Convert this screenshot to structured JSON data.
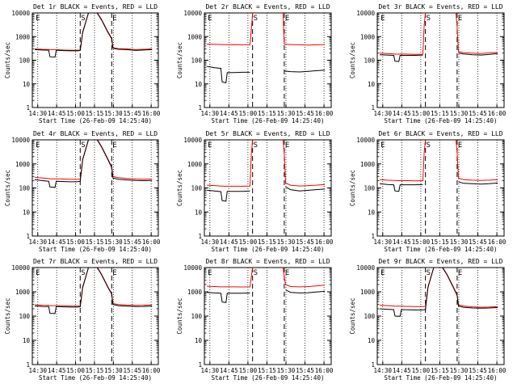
{
  "figure": {
    "ylabel": "Counts/sec",
    "xlabel": "Start Time (26-Feb-09 14:25:40)",
    "time_ticks": [
      "14:30",
      "14:45",
      "15:00",
      "15:15",
      "15:30",
      "15:45",
      "16:00"
    ],
    "y_ticks": [
      "1",
      "10",
      "100",
      "1000",
      "10000"
    ],
    "marker_labels": [
      "E",
      "S",
      "E"
    ],
    "colors": {
      "events": "#000000",
      "lld": "#ff0000",
      "axes": "#000000"
    }
  },
  "chart_data": [
    {
      "type": "line",
      "title": "Det 1r BLACK = Events, RED = LLD",
      "xlabel": "Start Time (26-Feb-09 14:25:40)",
      "ylabel": "Counts/sec",
      "ylim": [
        1,
        10000
      ],
      "yscale": "log",
      "x_unit": "minutes after 14:25:40",
      "markers_x": [
        2,
        38,
        63
      ],
      "marker_labels": [
        "E",
        "S",
        "E"
      ],
      "series": [
        {
          "name": "Events",
          "color": "#000000",
          "x": [
            2,
            8,
            13,
            14,
            18,
            19,
            25,
            30,
            35,
            36,
            38,
            40,
            45,
            50,
            52,
            55,
            60,
            63,
            64,
            68,
            75,
            82,
            88,
            95
          ],
          "values": [
            280,
            270,
            265,
            140,
            135,
            265,
            255,
            250,
            250,
            250,
            255,
            1500,
            12000,
            12000,
            9000,
            5000,
            1500,
            800,
            320,
            290,
            280,
            260,
            270,
            280
          ]
        },
        {
          "name": "LLD",
          "color": "#ff0000",
          "x": [
            2,
            8,
            13,
            14,
            18,
            19,
            25,
            30,
            35,
            36,
            38,
            40,
            45,
            50,
            52,
            55,
            60,
            63,
            64,
            68,
            75,
            82,
            88,
            95
          ],
          "values": [
            300,
            290,
            285,
            280,
            280,
            280,
            270,
            265,
            265,
            265,
            270,
            1600,
            12000,
            12000,
            9500,
            5200,
            1600,
            850,
            340,
            310,
            300,
            280,
            290,
            300
          ]
        }
      ]
    },
    {
      "type": "line",
      "title": "Det 2r BLACK = Events, RED = LLD",
      "xlabel": "Start Time (26-Feb-09 14:25:40)",
      "ylabel": "Counts/sec",
      "ylim": [
        1,
        10000
      ],
      "yscale": "log",
      "x_unit": "minutes after 14:25:40",
      "markers_x": [
        2,
        38,
        63
      ],
      "marker_labels": [
        "E",
        "S",
        "E"
      ],
      "series": [
        {
          "name": "Events",
          "color": "#000000",
          "x": [
            2,
            8,
            13,
            14,
            17,
            18,
            24,
            30,
            36,
            38,
            42,
            50,
            56,
            62,
            63,
            68,
            75,
            82,
            88,
            95
          ],
          "values": [
            55,
            48,
            45,
            12,
            11,
            30,
            30,
            31,
            31,
            null,
            null,
            null,
            null,
            null,
            35,
            33,
            32,
            34,
            36,
            38
          ]
        },
        {
          "name": "LLD",
          "color": "#ff0000",
          "x": [
            2,
            8,
            13,
            17,
            24,
            30,
            36,
            37,
            38,
            40,
            45,
            50,
            55,
            60,
            62,
            63,
            68,
            75,
            82,
            88,
            95
          ],
          "values": [
            480,
            470,
            460,
            455,
            460,
            455,
            450,
            2000,
            10000,
            11000,
            11000,
            11000,
            11000,
            11000,
            10000,
            470,
            460,
            450,
            440,
            450,
            460
          ]
        }
      ]
    },
    {
      "type": "line",
      "title": "Det 3r BLACK = Events, RED = LLD",
      "xlabel": "Start Time (26-Feb-09 14:25:40)",
      "ylabel": "Counts/sec",
      "ylim": [
        1,
        10000
      ],
      "yscale": "log",
      "x_unit": "minutes after 14:25:40",
      "markers_x": [
        2,
        38,
        63
      ],
      "marker_labels": [
        "E",
        "S",
        "E"
      ],
      "series": [
        {
          "name": "Events",
          "color": "#000000",
          "x": [
            2,
            8,
            13,
            14,
            17,
            18,
            24,
            30,
            36,
            37,
            63,
            64,
            68,
            75,
            82,
            88,
            95
          ],
          "values": [
            170,
            165,
            160,
            90,
            88,
            160,
            160,
            160,
            165,
            null,
            null,
            200,
            185,
            170,
            165,
            175,
            190
          ]
        },
        {
          "name": "LLD",
          "color": "#ff0000",
          "x": [
            2,
            8,
            13,
            14,
            17,
            18,
            24,
            30,
            36,
            37,
            38,
            62,
            63,
            64,
            68,
            75,
            82,
            88,
            95
          ],
          "values": [
            200,
            190,
            185,
            180,
            180,
            185,
            180,
            178,
            180,
            3000,
            11000,
            11000,
            2500,
            230,
            210,
            200,
            190,
            205,
            215
          ]
        }
      ]
    },
    {
      "type": "line",
      "title": "Det 4r BLACK = Events, RED = LLD",
      "xlabel": "Start Time (26-Feb-09 14:25:40)",
      "ylabel": "Counts/sec",
      "ylim": [
        1,
        10000
      ],
      "yscale": "log",
      "x_unit": "minutes after 14:25:40",
      "markers_x": [
        2,
        38,
        63
      ],
      "marker_labels": [
        "E",
        "S",
        "E"
      ],
      "series": [
        {
          "name": "Events",
          "color": "#000000",
          "x": [
            2,
            8,
            13,
            14,
            18,
            19,
            25,
            30,
            35,
            36,
            38,
            40,
            45,
            50,
            52,
            55,
            60,
            63,
            64,
            68,
            75,
            82,
            88,
            95
          ],
          "values": [
            220,
            200,
            190,
            110,
            105,
            190,
            185,
            180,
            180,
            182,
            190,
            1500,
            12000,
            12000,
            9000,
            5000,
            1500,
            700,
            260,
            230,
            215,
            205,
            200,
            205
          ]
        },
        {
          "name": "LLD",
          "color": "#ff0000",
          "x": [
            2,
            8,
            13,
            14,
            18,
            19,
            25,
            30,
            35,
            36,
            38,
            40,
            45,
            50,
            52,
            55,
            60,
            63,
            64,
            68,
            75,
            82,
            88,
            95
          ],
          "values": [
            280,
            260,
            245,
            240,
            240,
            240,
            235,
            230,
            228,
            228,
            235,
            1600,
            12000,
            12000,
            9500,
            5200,
            1600,
            750,
            300,
            270,
            250,
            235,
            230,
            235
          ]
        }
      ]
    },
    {
      "type": "line",
      "title": "Det 5r BLACK = Events, RED = LLD",
      "xlabel": "Start Time (26-Feb-09 14:25:40)",
      "ylabel": "Counts/sec",
      "ylim": [
        1,
        10000
      ],
      "yscale": "log",
      "x_unit": "minutes after 14:25:40",
      "markers_x": [
        2,
        38,
        63
      ],
      "marker_labels": [
        "E",
        "S",
        "E"
      ],
      "series": [
        {
          "name": "Events",
          "color": "#000000",
          "x": [
            2,
            8,
            13,
            14,
            17,
            18,
            24,
            30,
            36,
            37,
            63,
            64,
            68,
            75,
            82,
            88,
            95
          ],
          "values": [
            80,
            75,
            70,
            30,
            28,
            72,
            72,
            72,
            75,
            null,
            null,
            110,
            85,
            75,
            80,
            85,
            90
          ]
        },
        {
          "name": "LLD",
          "color": "#ff0000",
          "x": [
            2,
            8,
            13,
            17,
            24,
            30,
            36,
            37,
            38,
            62,
            63,
            64,
            68,
            75,
            82,
            88,
            95
          ],
          "values": [
            130,
            125,
            120,
            118,
            118,
            118,
            120,
            2500,
            11000,
            11000,
            2500,
            160,
            130,
            120,
            125,
            130,
            140
          ]
        }
      ]
    },
    {
      "type": "line",
      "title": "Det 6r BLACK = Events, RED = LLD",
      "xlabel": "Start Time (26-Feb-09 14:25:40)",
      "ylabel": "Counts/sec",
      "ylim": [
        1,
        10000
      ],
      "yscale": "log",
      "x_unit": "minutes after 14:25:40",
      "markers_x": [
        2,
        38,
        63
      ],
      "marker_labels": [
        "E",
        "S",
        "E"
      ],
      "series": [
        {
          "name": "Events",
          "color": "#000000",
          "x": [
            2,
            8,
            13,
            14,
            17,
            18,
            24,
            30,
            36,
            37,
            63,
            64,
            68,
            75,
            82,
            88,
            95
          ],
          "values": [
            150,
            140,
            135,
            75,
            72,
            135,
            135,
            135,
            138,
            null,
            null,
            180,
            155,
            150,
            145,
            150,
            160
          ]
        },
        {
          "name": "LLD",
          "color": "#ff0000",
          "x": [
            2,
            8,
            13,
            17,
            24,
            30,
            36,
            37,
            38,
            62,
            63,
            64,
            68,
            75,
            82,
            88,
            95
          ],
          "values": [
            220,
            210,
            205,
            200,
            200,
            198,
            200,
            3000,
            11000,
            11000,
            3000,
            260,
            220,
            210,
            205,
            210,
            220
          ]
        }
      ]
    },
    {
      "type": "line",
      "title": "Det 7r BLACK = Events, RED = LLD",
      "xlabel": "Start Time (26-Feb-09 14:25:40)",
      "ylabel": "Counts/sec",
      "ylim": [
        1,
        10000
      ],
      "yscale": "log",
      "x_unit": "minutes after 14:25:40",
      "markers_x": [
        2,
        38,
        63
      ],
      "marker_labels": [
        "E",
        "S",
        "E"
      ],
      "series": [
        {
          "name": "Events",
          "color": "#000000",
          "x": [
            2,
            8,
            13,
            14,
            18,
            19,
            25,
            30,
            35,
            36,
            38,
            40,
            45,
            50,
            52,
            55,
            60,
            63,
            64,
            68,
            75,
            82,
            88,
            95
          ],
          "values": [
            260,
            250,
            245,
            130,
            128,
            245,
            240,
            235,
            235,
            235,
            240,
            1500,
            12000,
            12000,
            9000,
            5000,
            1500,
            800,
            300,
            270,
            255,
            245,
            250,
            260
          ]
        },
        {
          "name": "LLD",
          "color": "#ff0000",
          "x": [
            2,
            8,
            13,
            14,
            18,
            19,
            25,
            30,
            35,
            36,
            38,
            40,
            45,
            50,
            52,
            55,
            60,
            63,
            64,
            68,
            75,
            82,
            88,
            95
          ],
          "values": [
            290,
            280,
            275,
            270,
            270,
            270,
            265,
            260,
            260,
            260,
            265,
            1600,
            12000,
            12000,
            9500,
            5200,
            1600,
            850,
            330,
            300,
            285,
            275,
            280,
            290
          ]
        }
      ]
    },
    {
      "type": "line",
      "title": "Det 8r BLACK = Events, RED = LLD",
      "xlabel": "Start Time (26-Feb-09 14:25:40)",
      "ylabel": "Counts/sec",
      "ylim": [
        1,
        10000
      ],
      "yscale": "log",
      "x_unit": "minutes after 14:25:40",
      "markers_x": [
        2,
        38,
        63
      ],
      "marker_labels": [
        "E",
        "S",
        "E"
      ],
      "series": [
        {
          "name": "Events",
          "color": "#000000",
          "x": [
            2,
            8,
            13,
            14,
            17,
            18,
            24,
            30,
            36,
            37,
            63,
            64,
            68,
            75,
            82,
            88,
            95
          ],
          "values": [
            950,
            900,
            880,
            380,
            360,
            880,
            880,
            880,
            890,
            null,
            null,
            1200,
            950,
            900,
            920,
            980,
            1050
          ]
        },
        {
          "name": "LLD",
          "color": "#ff0000",
          "x": [
            2,
            8,
            13,
            17,
            24,
            30,
            36,
            37,
            38,
            62,
            63,
            64,
            68,
            75,
            82,
            88,
            95
          ],
          "values": [
            1700,
            1650,
            1600,
            1600,
            1600,
            1580,
            1600,
            4000,
            11000,
            11000,
            4000,
            2000,
            1650,
            1600,
            1650,
            1750,
            1900
          ]
        }
      ]
    },
    {
      "type": "line",
      "title": "Det 9r BLACK = Events, RED = LLD",
      "xlabel": "Start Time (26-Feb-09 14:25:40)",
      "ylabel": "Counts/sec",
      "ylim": [
        1,
        10000
      ],
      "yscale": "log",
      "x_unit": "minutes after 14:25:40",
      "markers_x": [
        2,
        38,
        63
      ],
      "marker_labels": [
        "E",
        "S",
        "E"
      ],
      "series": [
        {
          "name": "Events",
          "color": "#000000",
          "x": [
            2,
            8,
            13,
            14,
            18,
            19,
            25,
            30,
            35,
            36,
            38,
            40,
            45,
            50,
            52,
            55,
            60,
            63,
            64,
            68,
            75,
            82,
            88,
            95
          ],
          "values": [
            200,
            190,
            185,
            100,
            98,
            185,
            180,
            178,
            178,
            180,
            185,
            1500,
            12000,
            12000,
            9000,
            5000,
            1500,
            700,
            260,
            230,
            215,
            210,
            215,
            225
          ]
        },
        {
          "name": "LLD",
          "color": "#ff0000",
          "x": [
            2,
            8,
            13,
            14,
            18,
            19,
            25,
            30,
            35,
            36,
            38,
            40,
            45,
            50,
            52,
            55,
            60,
            63,
            64,
            68,
            75,
            82,
            88,
            95
          ],
          "values": [
            280,
            270,
            260,
            255,
            255,
            255,
            250,
            245,
            245,
            245,
            250,
            1600,
            12000,
            12000,
            9500,
            5200,
            1600,
            750,
            290,
            260,
            240,
            230,
            235,
            245
          ]
        }
      ]
    }
  ]
}
